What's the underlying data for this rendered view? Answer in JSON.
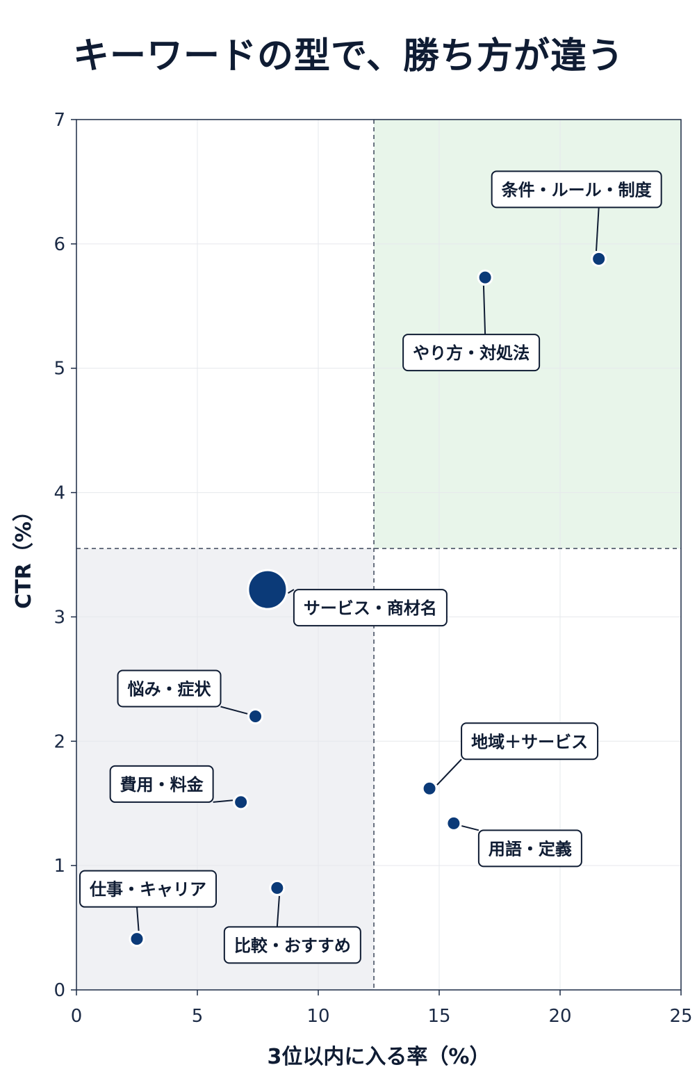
{
  "title": "キーワードの型で、勝ち方が違う",
  "colors": {
    "marker": "#0b3a78",
    "quadrant_top_right": "#e8f5ea",
    "quadrant_bottom_left": "#f0f1f4",
    "axis": "#1b2a45",
    "grid": "#e6e8ec"
  },
  "chart_data": {
    "type": "scatter",
    "title": "キーワードの型で、勝ち方が違う",
    "xlabel": "3位以内に入る率（%）",
    "ylabel": "CTR（%）",
    "xlim": [
      0,
      25
    ],
    "ylim": [
      0,
      7
    ],
    "xticks": [
      0,
      5,
      10,
      15,
      20,
      25
    ],
    "yticks": [
      0,
      1,
      2,
      3,
      4,
      5,
      6,
      7
    ],
    "grid": true,
    "reference_lines": {
      "x": 12.3,
      "y": 3.55
    },
    "points": [
      {
        "label": "条件・ルール・制度",
        "x": 21.6,
        "y": 5.88,
        "size": "small"
      },
      {
        "label": "やり方・対処法",
        "x": 16.9,
        "y": 5.73,
        "size": "small"
      },
      {
        "label": "サービス・商材名",
        "x": 7.9,
        "y": 3.22,
        "size": "large"
      },
      {
        "label": "悩み・症状",
        "x": 7.4,
        "y": 2.2,
        "size": "small"
      },
      {
        "label": "費用・料金",
        "x": 6.8,
        "y": 1.51,
        "size": "small"
      },
      {
        "label": "地域＋サービス",
        "x": 14.6,
        "y": 1.62,
        "size": "small"
      },
      {
        "label": "用語・定義",
        "x": 15.6,
        "y": 1.34,
        "size": "small"
      },
      {
        "label": "仕事・キャリア",
        "x": 2.5,
        "y": 0.41,
        "size": "small"
      },
      {
        "label": "比較・おすすめ",
        "x": 8.3,
        "y": 0.82,
        "size": "small"
      }
    ]
  }
}
